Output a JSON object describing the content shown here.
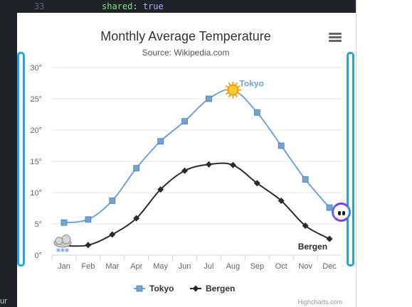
{
  "editor": {
    "line_number": "33",
    "code_key": "shared",
    "code_colon": ": ",
    "code_value": "true",
    "left_fragment": "ur"
  },
  "chart_data": {
    "type": "line",
    "title": "Monthly Average Temperature",
    "subtitle": "Source: Wikipedia.com",
    "categories": [
      "Jan",
      "Feb",
      "Mar",
      "Apr",
      "May",
      "Jun",
      "Jul",
      "Aug",
      "Sep",
      "Oct",
      "Nov",
      "Dec"
    ],
    "series": [
      {
        "name": "Tokyo",
        "values": [
          5.2,
          5.7,
          8.7,
          13.9,
          18.2,
          21.4,
          25.0,
          26.4,
          22.8,
          17.5,
          12.1,
          7.6
        ],
        "color": "#6ea4d8",
        "marker": "square"
      },
      {
        "name": "Bergen",
        "values": [
          1.5,
          1.6,
          3.3,
          5.9,
          10.5,
          13.5,
          14.5,
          14.4,
          11.5,
          8.7,
          4.7,
          2.6
        ],
        "color": "#2b2b2b",
        "marker": "diamond"
      }
    ],
    "ylim": [
      0,
      30
    ],
    "yticks": [
      "0°",
      "5°",
      "10°",
      "15°",
      "20°",
      "25°",
      "30°"
    ],
    "grid": true,
    "legend": "bottom-center",
    "annotations": [
      {
        "series": "Tokyo",
        "point": "Aug",
        "icon": "sun-icon"
      },
      {
        "series": "Bergen",
        "point": "Jan",
        "icon": "snow-cloud-icon"
      }
    ],
    "series_labels": [
      "Tokyo",
      "Bergen"
    ],
    "credits": "Highcharts.com"
  }
}
